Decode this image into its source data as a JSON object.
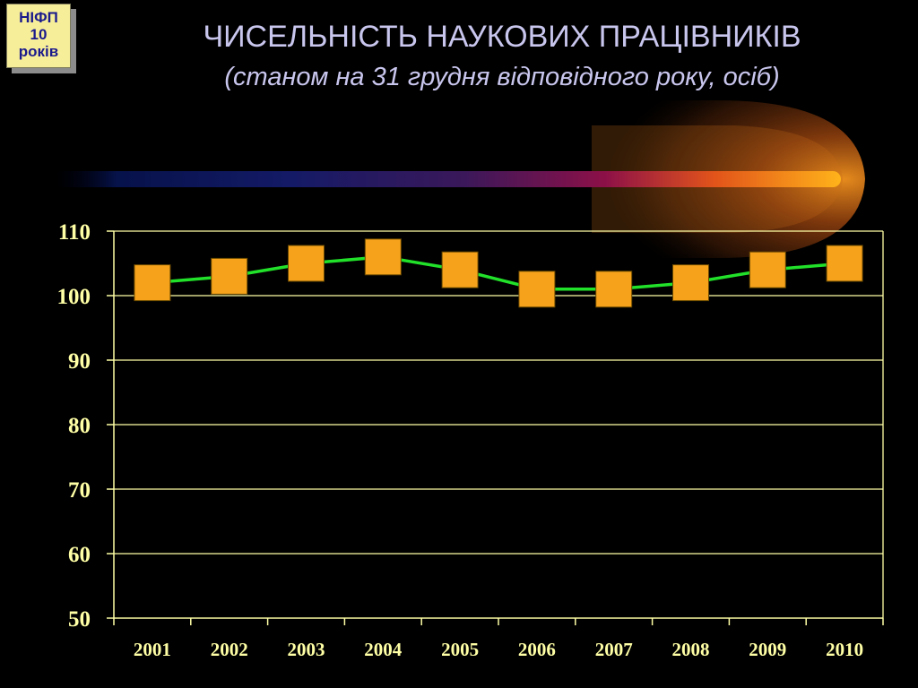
{
  "badge": {
    "line1": "НІФП",
    "line2": "10",
    "line3": "років"
  },
  "colors": {
    "background": "#000000",
    "text_title": "#c9c6ee",
    "axis": "#ffffa6",
    "line": "#22e12a",
    "marker": "#f7a21b",
    "badge_bg": "#f7ee9a",
    "badge_text": "#1a1a8c"
  },
  "chart_data": {
    "type": "line",
    "title": "ЧИСЕЛЬНІСТЬ НАУКОВИХ ПРАЦІВНИКІВ",
    "subtitle": "(станом на 31 грудня відповідного року, осіб)",
    "xlabel": "",
    "ylabel": "",
    "categories": [
      "2001",
      "2002",
      "2003",
      "2004",
      "2005",
      "2006",
      "2007",
      "2008",
      "2009",
      "2010"
    ],
    "series": [
      {
        "values": [
          102,
          103,
          105,
          106,
          104,
          101,
          101,
          102,
          104,
          105
        ],
        "marker": "square"
      }
    ],
    "ylim": [
      50,
      110
    ],
    "yticks": [
      "50",
      "60",
      "70",
      "80",
      "90",
      "100",
      "110"
    ],
    "grid": true,
    "legend": "none"
  }
}
